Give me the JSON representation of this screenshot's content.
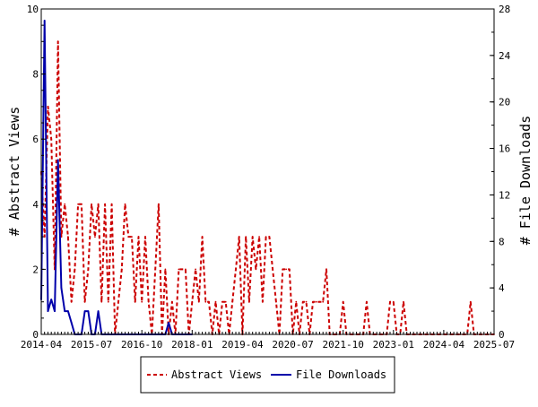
{
  "chart_data": {
    "type": "line",
    "title": "",
    "xlabel": "",
    "ylabel": "# Abstract Views",
    "y2label": "# File Downloads",
    "x_range": [
      "2014-04",
      "2025-07"
    ],
    "x_ticks": [
      "2014-04",
      "2015-07",
      "2016-10",
      "2018-01",
      "2019-04",
      "2020-07",
      "2021-10",
      "2023-01",
      "2024-04",
      "2025-07"
    ],
    "ylim": [
      0,
      10
    ],
    "y_ticks": [
      "0",
      "2",
      "4",
      "6",
      "8",
      "10"
    ],
    "y2lim": [
      0,
      28
    ],
    "y2_ticks": [
      "0",
      "4",
      "8",
      "12",
      "16",
      "20",
      "24",
      "28"
    ],
    "grid": false,
    "legend_position": "bottom-center",
    "colors": {
      "abstract_views": "#cc0000",
      "file_downloads": "#0000aa"
    },
    "series": [
      {
        "name": "Abstract Views",
        "axis": "left",
        "style": "dashed",
        "x": [
          "2014-04",
          "2014-05",
          "2014-06",
          "2014-07",
          "2014-08",
          "2014-09",
          "2014-10",
          "2014-11",
          "2014-12",
          "2015-01",
          "2015-02",
          "2015-03",
          "2015-04",
          "2015-05",
          "2015-06",
          "2015-07",
          "2015-08",
          "2015-09",
          "2015-10",
          "2015-11",
          "2015-12",
          "2016-01",
          "2016-02",
          "2016-03",
          "2016-04",
          "2016-05",
          "2016-06",
          "2016-07",
          "2016-08",
          "2016-09",
          "2016-10",
          "2016-11",
          "2016-12",
          "2017-01",
          "2017-02",
          "2017-03",
          "2017-04",
          "2017-05",
          "2017-06",
          "2017-07",
          "2017-08",
          "2017-09",
          "2017-10",
          "2017-11",
          "2017-12",
          "2018-01",
          "2018-02",
          "2018-03",
          "2018-04",
          "2018-05",
          "2018-06",
          "2018-07",
          "2018-08",
          "2018-09",
          "2018-10",
          "2018-11",
          "2018-12",
          "2019-01",
          "2019-02",
          "2019-03",
          "2019-04",
          "2019-05",
          "2019-06",
          "2019-07",
          "2019-08",
          "2019-09",
          "2019-10",
          "2019-11",
          "2019-12",
          "2020-01",
          "2020-02",
          "2020-03",
          "2020-04",
          "2020-05",
          "2020-06",
          "2020-07",
          "2020-08",
          "2020-09",
          "2020-10",
          "2020-11",
          "2020-12",
          "2021-01",
          "2021-02",
          "2021-03",
          "2021-04",
          "2021-05",
          "2021-06",
          "2021-07",
          "2021-08",
          "2021-09",
          "2021-10",
          "2021-11",
          "2021-12",
          "2022-01",
          "2022-02",
          "2022-03",
          "2022-04",
          "2022-05",
          "2022-06",
          "2022-07",
          "2022-08",
          "2022-09",
          "2022-10",
          "2022-11",
          "2022-12",
          "2023-01",
          "2023-02",
          "2023-03",
          "2023-04",
          "2023-05",
          "2023-06",
          "2023-07",
          "2023-08",
          "2023-09",
          "2023-10",
          "2023-11",
          "2023-12",
          "2024-01",
          "2024-02",
          "2024-03",
          "2024-04",
          "2024-05",
          "2024-06",
          "2024-07",
          "2024-08",
          "2024-09",
          "2024-10",
          "2024-11",
          "2024-12",
          "2025-01",
          "2025-02",
          "2025-03",
          "2025-04",
          "2025-05",
          "2025-06",
          "2025-07"
        ],
        "values": [
          5,
          3,
          7,
          6,
          2,
          9,
          3,
          4,
          3,
          1,
          2,
          4,
          4,
          1,
          2,
          4,
          3,
          4,
          1,
          4,
          1,
          4,
          0,
          1,
          2,
          4,
          3,
          3,
          1,
          3,
          1,
          3,
          1,
          0,
          2,
          4,
          0,
          2,
          0,
          1,
          0,
          2,
          2,
          2,
          0,
          1,
          2,
          1,
          3,
          1,
          1,
          0,
          1,
          0,
          1,
          1,
          0,
          1,
          2,
          3,
          0,
          3,
          1,
          3,
          2,
          3,
          1,
          3,
          3,
          2,
          1,
          0,
          2,
          2,
          2,
          0,
          1,
          0,
          1,
          1,
          0,
          1,
          1,
          1,
          1,
          2,
          0,
          0,
          0,
          0,
          1,
          0,
          0,
          0,
          0,
          0,
          0,
          1,
          0,
          0,
          0,
          0,
          0,
          0,
          1,
          1,
          0,
          0,
          1,
          0,
          0,
          0,
          0,
          0,
          0,
          0,
          0,
          0,
          0,
          0,
          0,
          0,
          0,
          0,
          0,
          0,
          0,
          0,
          1,
          0,
          0,
          0,
          0,
          0,
          0,
          0
        ],
        "color": "#cc0000"
      },
      {
        "name": "File Downloads",
        "axis": "right",
        "style": "solid",
        "x": [
          "2014-04",
          "2014-05",
          "2014-06",
          "2014-07",
          "2014-08",
          "2014-09",
          "2014-10",
          "2014-11",
          "2014-12",
          "2015-01",
          "2015-02",
          "2015-03",
          "2015-04",
          "2015-05",
          "2015-06",
          "2015-07",
          "2015-08",
          "2015-09",
          "2015-10",
          "2015-11",
          "2015-12",
          "2016-01",
          "2016-02",
          "2016-03",
          "2016-04",
          "2016-05",
          "2016-06",
          "2016-07",
          "2016-08",
          "2016-09",
          "2016-10",
          "2016-11",
          "2016-12",
          "2017-01",
          "2017-02",
          "2017-03",
          "2017-04",
          "2017-05",
          "2017-06",
          "2017-07",
          "2017-08",
          "2017-09",
          "2017-10",
          "2017-11",
          "2017-12",
          "2018-01"
        ],
        "values": [
          3,
          27,
          2,
          3,
          2,
          15,
          4,
          2,
          2,
          1,
          0,
          0,
          0,
          2,
          2,
          0,
          0,
          2,
          0,
          0,
          0,
          0,
          0,
          0,
          0,
          0,
          0,
          0,
          0,
          0,
          0,
          0,
          0,
          0,
          0,
          0,
          0,
          0,
          1,
          0,
          0,
          0,
          0,
          0,
          0,
          0
        ],
        "color": "#0000aa"
      }
    ]
  }
}
